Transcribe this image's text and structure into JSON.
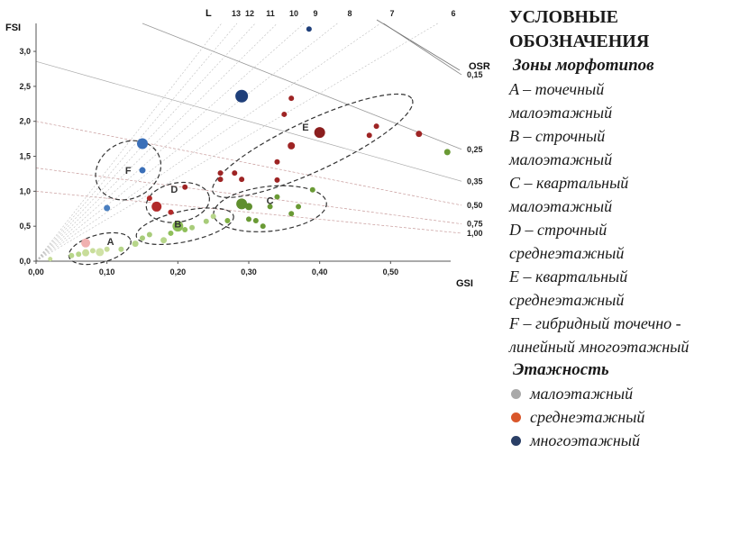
{
  "chart_data": {
    "type": "scatter",
    "xlabel": "GSI",
    "ylabel": "FSI",
    "xlim": [
      0,
      0.6
    ],
    "ylim": [
      0,
      3.4
    ],
    "x_ticks": [
      "0,00",
      "0,10",
      "0,20",
      "0,30",
      "0,40",
      "0,50"
    ],
    "x_tick_values": [
      0,
      0.1,
      0.2,
      0.3,
      0.4,
      0.5
    ],
    "y_ticks": [
      "0,0",
      "0,5",
      "1,0",
      "1,5",
      "2,0",
      "2,5",
      "3,0"
    ],
    "y_tick_values": [
      0,
      0.5,
      1.0,
      1.5,
      2.0,
      2.5,
      3.0
    ],
    "layer_rays": {
      "title": "L",
      "labels": [
        "13",
        "12",
        "11",
        "10",
        "9",
        "8",
        "7",
        "6"
      ],
      "values": [
        13,
        12,
        11,
        10,
        9,
        8,
        7,
        6
      ]
    },
    "osr_lines": {
      "title": "OSR",
      "labels": [
        "0,15",
        "0,25",
        "0,35",
        "0,50",
        "0,75",
        "1,00"
      ],
      "values": [
        0.15,
        0.25,
        0.35,
        0.5,
        0.75,
        1.0
      ]
    },
    "zones": [
      {
        "label": "A",
        "cx": 0.09,
        "cy": 0.18,
        "rx": 0.045,
        "ry": 0.2,
        "angle": -15,
        "label_x": 0.105,
        "label_y": 0.23
      },
      {
        "label": "B",
        "cx": 0.21,
        "cy": 0.5,
        "rx": 0.07,
        "ry": 0.22,
        "angle": -12,
        "label_x": 0.2,
        "label_y": 0.48
      },
      {
        "label": "C",
        "cx": 0.33,
        "cy": 0.75,
        "rx": 0.08,
        "ry": 0.32,
        "angle": -6,
        "label_x": 0.33,
        "label_y": 0.82
      },
      {
        "label": "D",
        "cx": 0.2,
        "cy": 0.84,
        "rx": 0.045,
        "ry": 0.28,
        "angle": -10,
        "label_x": 0.195,
        "label_y": 0.98
      },
      {
        "label": "E",
        "cx": 0.39,
        "cy": 1.65,
        "rx": 0.155,
        "ry": 0.36,
        "angle": -25,
        "label_x": 0.38,
        "label_y": 1.87
      },
      {
        "label": "F",
        "cx": 0.13,
        "cy": 1.3,
        "rx": 0.048,
        "ry": 0.4,
        "angle": -30,
        "label_x": 0.13,
        "label_y": 1.25
      }
    ],
    "series": [
      {
        "points": [
          {
            "x": 0.02,
            "y": 0.03,
            "c": "#c8dd9a",
            "s": 2.5
          },
          {
            "x": 0.05,
            "y": 0.08,
            "c": "#b7d68a",
            "s": 3
          },
          {
            "x": 0.06,
            "y": 0.1,
            "c": "#b7d68a",
            "s": 3
          },
          {
            "x": 0.07,
            "y": 0.12,
            "c": "#c8dd9a",
            "s": 4
          },
          {
            "x": 0.08,
            "y": 0.15,
            "c": "#c8dd9a",
            "s": 3
          },
          {
            "x": 0.09,
            "y": 0.13,
            "c": "#d0e2a6",
            "s": 4.5
          },
          {
            "x": 0.1,
            "y": 0.17,
            "c": "#c8dd9a",
            "s": 3
          },
          {
            "x": 0.12,
            "y": 0.17,
            "c": "#b7d68a",
            "s": 3
          },
          {
            "x": 0.07,
            "y": 0.26,
            "c": "#f0b0b0",
            "s": 5
          },
          {
            "x": 0.14,
            "y": 0.25,
            "c": "#b7d68a",
            "s": 3.5
          },
          {
            "x": 0.15,
            "y": 0.33,
            "c": "#a8cc7a",
            "s": 3
          },
          {
            "x": 0.16,
            "y": 0.38,
            "c": "#a8cc7a",
            "s": 3
          },
          {
            "x": 0.18,
            "y": 0.3,
            "c": "#b7d68a",
            "s": 3.5
          },
          {
            "x": 0.19,
            "y": 0.4,
            "c": "#8fbf5a",
            "s": 3
          },
          {
            "x": 0.2,
            "y": 0.5,
            "c": "#8fbf5a",
            "s": 6
          },
          {
            "x": 0.21,
            "y": 0.45,
            "c": "#8fbf5a",
            "s": 3
          },
          {
            "x": 0.22,
            "y": 0.48,
            "c": "#a8cc7a",
            "s": 3
          },
          {
            "x": 0.24,
            "y": 0.57,
            "c": "#a8cc7a",
            "s": 3
          },
          {
            "x": 0.25,
            "y": 0.64,
            "c": "#b7d68a",
            "s": 3
          },
          {
            "x": 0.27,
            "y": 0.58,
            "c": "#7fae43",
            "s": 3
          },
          {
            "x": 0.29,
            "y": 0.82,
            "c": "#5f8f2e",
            "s": 6
          },
          {
            "x": 0.3,
            "y": 0.78,
            "c": "#5f8f2e",
            "s": 4
          },
          {
            "x": 0.3,
            "y": 0.6,
            "c": "#6a9a35",
            "s": 3
          },
          {
            "x": 0.31,
            "y": 0.58,
            "c": "#6a9a35",
            "s": 3
          },
          {
            "x": 0.32,
            "y": 0.5,
            "c": "#6a9a35",
            "s": 3
          },
          {
            "x": 0.33,
            "y": 0.78,
            "c": "#6a9a35",
            "s": 3
          },
          {
            "x": 0.34,
            "y": 0.92,
            "c": "#6a9a35",
            "s": 3
          },
          {
            "x": 0.36,
            "y": 0.68,
            "c": "#6a9a35",
            "s": 3
          },
          {
            "x": 0.37,
            "y": 0.78,
            "c": "#6a9a35",
            "s": 3
          },
          {
            "x": 0.39,
            "y": 1.02,
            "c": "#6a9a35",
            "s": 3
          },
          {
            "x": 0.58,
            "y": 1.56,
            "c": "#6a9a35",
            "s": 3.5
          },
          {
            "x": 0.16,
            "y": 0.9,
            "c": "#b22a2a",
            "s": 3
          },
          {
            "x": 0.17,
            "y": 0.78,
            "c": "#b22a2a",
            "s": 5.5
          },
          {
            "x": 0.19,
            "y": 0.7,
            "c": "#b22a2a",
            "s": 3
          },
          {
            "x": 0.21,
            "y": 1.06,
            "c": "#9e2424",
            "s": 3
          },
          {
            "x": 0.26,
            "y": 1.26,
            "c": "#9e2424",
            "s": 3
          },
          {
            "x": 0.26,
            "y": 1.17,
            "c": "#9e2424",
            "s": 3
          },
          {
            "x": 0.28,
            "y": 1.26,
            "c": "#9e2424",
            "s": 3
          },
          {
            "x": 0.29,
            "y": 1.17,
            "c": "#9e2424",
            "s": 3
          },
          {
            "x": 0.34,
            "y": 1.16,
            "c": "#9e2424",
            "s": 3
          },
          {
            "x": 0.34,
            "y": 1.42,
            "c": "#9e2424",
            "s": 3
          },
          {
            "x": 0.35,
            "y": 2.1,
            "c": "#9e2424",
            "s": 3
          },
          {
            "x": 0.36,
            "y": 1.65,
            "c": "#9e2424",
            "s": 4
          },
          {
            "x": 0.36,
            "y": 2.33,
            "c": "#9e2424",
            "s": 3
          },
          {
            "x": 0.4,
            "y": 1.84,
            "c": "#8b1e1e",
            "s": 6
          },
          {
            "x": 0.47,
            "y": 1.8,
            "c": "#9e2424",
            "s": 3
          },
          {
            "x": 0.48,
            "y": 1.93,
            "c": "#9e2424",
            "s": 3
          },
          {
            "x": 0.54,
            "y": 1.82,
            "c": "#9e2424",
            "s": 3.5
          },
          {
            "x": 0.1,
            "y": 0.76,
            "c": "#4a7fc0",
            "s": 3.5
          },
          {
            "x": 0.15,
            "y": 1.3,
            "c": "#3a6fb8",
            "s": 3.5
          },
          {
            "x": 0.15,
            "y": 1.68,
            "c": "#3a6fb8",
            "s": 6
          },
          {
            "x": 0.29,
            "y": 2.36,
            "c": "#1f3f7a",
            "s": 7
          },
          {
            "x": 0.385,
            "y": 3.32,
            "c": "#1f3f7a",
            "s": 3
          }
        ]
      }
    ]
  },
  "legend": {
    "title_lines": [
      "УСЛОВНЫЕ",
      "ОБОЗНАЧЕНИЯ"
    ],
    "zones_title": "Зоны морфотипов",
    "zone_lines": [
      "A – точечный",
      "малоэтажный",
      "B – строчный",
      "малоэтажный",
      "C – квартальный",
      "малоэтажный",
      "D – строчный",
      "среднеэтажный",
      "E – квартальный",
      "среднеэтажный",
      "F – гибридный точечно -",
      "линейный многоэтажный"
    ],
    "floors_title": "Этажность",
    "floors": [
      {
        "label": "малоэтажный",
        "color": "#a9a9a9"
      },
      {
        "label": "среднеэтажный",
        "color": "#d9572b"
      },
      {
        "label": "многоэтажный",
        "color": "#2a3f66"
      }
    ]
  }
}
